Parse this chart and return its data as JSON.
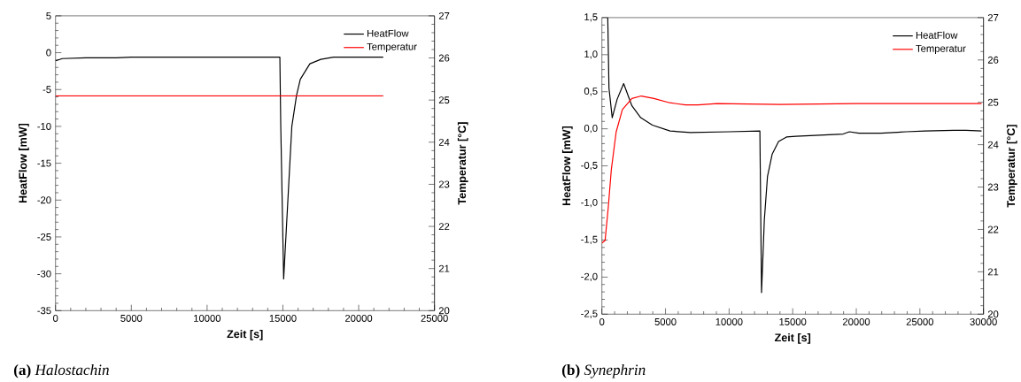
{
  "chart_data": [
    {
      "type": "line",
      "title": "**(a)** *Halostachin*",
      "xlabel": "Zeit [s]",
      "ylabel": "HeatFlow [mW]",
      "y2label": "Temperatur [°C]",
      "legend": "top right",
      "grid": false,
      "xlim": [
        0,
        25000
      ],
      "xticks": [
        0,
        5000,
        10000,
        15000,
        20000,
        25000
      ],
      "ylim": [
        -35,
        5
      ],
      "yticks": [
        -35,
        -30,
        -25,
        -20,
        -15,
        -10,
        -5,
        0,
        5
      ],
      "y2lim": [
        20,
        27
      ],
      "y2ticks": [
        20,
        21,
        22,
        23,
        24,
        25,
        26,
        27
      ],
      "series": [
        {
          "name": "HeatFlow",
          "color": "#000000",
          "x": [
            0,
            450,
            2000,
            4000,
            5000,
            10000,
            14800,
            14860,
            15050,
            15590,
            15900,
            16150,
            16780,
            17500,
            18340,
            21620
          ],
          "values": [
            -1.1,
            -0.8,
            -0.7,
            -0.7,
            -0.6,
            -0.6,
            -0.6,
            -10,
            -30.7,
            -10,
            -5.8,
            -3.6,
            -1.5,
            -0.9,
            -0.6,
            -0.6
          ]
        },
        {
          "name": "Temperatur",
          "color": "#ff0000",
          "axis": "y2",
          "x": [
            0,
            21620
          ],
          "values": [
            25.1,
            25.1
          ]
        }
      ]
    },
    {
      "type": "line",
      "title": "**(b)** *Synephrin*",
      "xlabel": "Zeit [s]",
      "ylabel": "HeatFlow [mW]",
      "y2label": "Temperatur [°C]",
      "legend": "top right",
      "grid": false,
      "xlim": [
        0,
        30000
      ],
      "xticks": [
        0,
        5000,
        10000,
        15000,
        20000,
        25000,
        30000
      ],
      "ylim": [
        -2.5,
        1.5
      ],
      "yticks": [
        {
          "value": -2.5,
          "label": "-2,5"
        },
        {
          "value": -2,
          "label": "-2,0"
        },
        {
          "value": -1.5,
          "label": "-1,5"
        },
        {
          "value": -1,
          "label": "-1,0"
        },
        {
          "value": -0.5,
          "label": "-0,5"
        },
        {
          "value": 0,
          "label": "0,0"
        },
        {
          "value": 0.5,
          "label": "0,5"
        },
        {
          "value": 1,
          "label": "1,0"
        },
        {
          "value": 1.5,
          "label": "1,5"
        }
      ],
      "y2lim": [
        20,
        27
      ],
      "y2ticks": [
        20,
        21,
        22,
        23,
        24,
        25,
        26,
        27
      ],
      "series": [
        {
          "name": "HeatFlow",
          "color": "#000000",
          "x": [
            460,
            555,
            810,
            1200,
            1710,
            2360,
            3050,
            3970,
            5360,
            6970,
            10000,
            12420,
            12550,
            12770,
            13020,
            13390,
            13890,
            14510,
            15250,
            18970,
            19460,
            20200,
            21940,
            23930,
            25410,
            27650,
            28640,
            29850
          ],
          "values": [
            1.5,
            0.55,
            0.15,
            0.4,
            0.61,
            0.31,
            0.15,
            0.05,
            -0.03,
            -0.05,
            -0.04,
            -0.03,
            -2.21,
            -1.23,
            -0.64,
            -0.34,
            -0.17,
            -0.11,
            -0.1,
            -0.07,
            -0.04,
            -0.06,
            -0.06,
            -0.04,
            -0.03,
            -0.02,
            -0.02,
            -0.03
          ]
        },
        {
          "name": "Temperatur",
          "color": "#ff0000",
          "axis": "y2",
          "x": [
            0,
            250,
            500,
            740,
            1120,
            1610,
            2360,
            3100,
            4090,
            5330,
            6570,
            7560,
            9050,
            14010,
            20000,
            29850
          ],
          "values": [
            21.68,
            21.74,
            22.52,
            23.41,
            24.3,
            24.83,
            25.09,
            25.15,
            25.09,
            24.99,
            24.94,
            24.94,
            24.97,
            24.95,
            24.97,
            24.97
          ]
        }
      ]
    }
  ]
}
